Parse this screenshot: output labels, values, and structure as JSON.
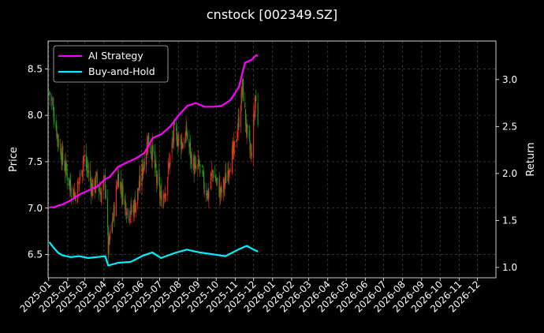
{
  "chart_data": {
    "type": "line",
    "title": "cnstock [002349.SZ]",
    "xlabel": "",
    "ylabel_left": "Price",
    "ylabel_right": "Return",
    "x_ticks": [
      "2025-01",
      "2025-02",
      "2025-03",
      "2025-04",
      "2025-05",
      "2025-06",
      "2025-07",
      "2025-08",
      "2025-09",
      "2025-10",
      "2025-11",
      "2025-12",
      "2026-01",
      "2026-02",
      "2026-03",
      "2026-04",
      "2026-05",
      "2026-06",
      "2026-07",
      "2026-08",
      "2026-09",
      "2026-10",
      "2026-11",
      "2026-12"
    ],
    "y_left_ticks": [
      6.5,
      7.0,
      7.5,
      8.0,
      8.5
    ],
    "y_right_ticks": [
      1.0,
      1.5,
      2.0,
      2.5,
      3.0
    ],
    "y_left_range": [
      6.25,
      8.8
    ],
    "y_right_range": [
      0.89,
      3.41
    ],
    "grid": true,
    "legend_position": "upper-left",
    "colors": {
      "up": "#ff2a1a",
      "down": "#1fa01f",
      "ai": "#ff00ff",
      "bh": "#00f0ff",
      "grid": "#555555"
    },
    "price_keypoints": [
      [
        "2025-01-02",
        8.25
      ],
      [
        "2025-01-09",
        8.05
      ],
      [
        "2025-01-16",
        7.75
      ],
      [
        "2025-01-23",
        7.55
      ],
      [
        "2025-02-05",
        7.25
      ],
      [
        "2025-02-13",
        7.15
      ],
      [
        "2025-02-20",
        7.3
      ],
      [
        "2025-02-27",
        7.55
      ],
      [
        "2025-03-06",
        7.4
      ],
      [
        "2025-03-13",
        7.2
      ],
      [
        "2025-03-20",
        7.3
      ],
      [
        "2025-03-27",
        7.15
      ],
      [
        "2025-04-03",
        7.3
      ],
      [
        "2025-04-08",
        6.55
      ],
      [
        "2025-04-17",
        6.95
      ],
      [
        "2025-04-24",
        7.35
      ],
      [
        "2025-05-08",
        7.0
      ],
      [
        "2025-05-15",
        6.95
      ],
      [
        "2025-05-22",
        7.05
      ],
      [
        "2025-05-29",
        7.25
      ],
      [
        "2025-06-05",
        7.5
      ],
      [
        "2025-06-12",
        7.75
      ],
      [
        "2025-06-19",
        7.6
      ],
      [
        "2025-06-26",
        7.3
      ],
      [
        "2025-07-03",
        7.1
      ],
      [
        "2025-07-10",
        7.2
      ],
      [
        "2025-07-17",
        7.5
      ],
      [
        "2025-07-24",
        7.8
      ],
      [
        "2025-07-31",
        7.75
      ],
      [
        "2025-08-07",
        7.7
      ],
      [
        "2025-08-14",
        7.8
      ],
      [
        "2025-08-21",
        7.55
      ],
      [
        "2025-08-28",
        7.4
      ],
      [
        "2025-09-04",
        7.45
      ],
      [
        "2025-09-11",
        7.25
      ],
      [
        "2025-09-18",
        7.15
      ],
      [
        "2025-09-25",
        7.4
      ],
      [
        "2025-10-09",
        7.15
      ],
      [
        "2025-10-16",
        7.3
      ],
      [
        "2025-10-23",
        7.5
      ],
      [
        "2025-10-30",
        7.6
      ],
      [
        "2025-11-06",
        7.9
      ],
      [
        "2025-11-13",
        8.3
      ],
      [
        "2025-11-20",
        7.8
      ],
      [
        "2025-11-27",
        7.55
      ],
      [
        "2025-12-04",
        8.2
      ],
      [
        "2025-12-08",
        7.95
      ]
    ],
    "series": [
      {
        "name": "AI Strategy",
        "color": "#ff00ff",
        "points": [
          [
            "2025-01-02",
            1.64
          ],
          [
            "2025-01-10",
            1.64
          ],
          [
            "2025-01-17",
            1.66
          ],
          [
            "2025-01-24",
            1.67
          ],
          [
            "2025-02-07",
            1.72
          ],
          [
            "2025-02-21",
            1.78
          ],
          [
            "2025-03-07",
            1.82
          ],
          [
            "2025-03-21",
            1.86
          ],
          [
            "2025-04-03",
            1.94
          ],
          [
            "2025-04-10",
            1.96
          ],
          [
            "2025-04-24",
            2.07
          ],
          [
            "2025-05-09",
            2.12
          ],
          [
            "2025-05-23",
            2.16
          ],
          [
            "2025-06-06",
            2.22
          ],
          [
            "2025-06-20",
            2.38
          ],
          [
            "2025-07-04",
            2.42
          ],
          [
            "2025-07-18",
            2.5
          ],
          [
            "2025-08-01",
            2.62
          ],
          [
            "2025-08-15",
            2.72
          ],
          [
            "2025-08-29",
            2.75
          ],
          [
            "2025-09-12",
            2.71
          ],
          [
            "2025-09-26",
            2.71
          ],
          [
            "2025-10-10",
            2.72
          ],
          [
            "2025-10-24",
            2.78
          ],
          [
            "2025-11-07",
            2.92
          ],
          [
            "2025-11-17",
            3.18
          ],
          [
            "2025-11-28",
            3.21
          ],
          [
            "2025-12-05",
            3.26
          ],
          [
            "2025-12-08",
            3.25
          ]
        ]
      },
      {
        "name": "Buy-and-Hold",
        "color": "#00f0ff",
        "points": [
          [
            "2025-01-02",
            1.27
          ],
          [
            "2025-01-09",
            1.21
          ],
          [
            "2025-01-16",
            1.16
          ],
          [
            "2025-01-23",
            1.13
          ],
          [
            "2025-02-06",
            1.11
          ],
          [
            "2025-02-20",
            1.12
          ],
          [
            "2025-03-06",
            1.1
          ],
          [
            "2025-03-20",
            1.11
          ],
          [
            "2025-04-03",
            1.12
          ],
          [
            "2025-04-08",
            1.02
          ],
          [
            "2025-04-24",
            1.05
          ],
          [
            "2025-05-15",
            1.06
          ],
          [
            "2025-06-05",
            1.13
          ],
          [
            "2025-06-19",
            1.16
          ],
          [
            "2025-07-03",
            1.1
          ],
          [
            "2025-07-24",
            1.15
          ],
          [
            "2025-08-14",
            1.19
          ],
          [
            "2025-09-04",
            1.16
          ],
          [
            "2025-09-25",
            1.14
          ],
          [
            "2025-10-16",
            1.12
          ],
          [
            "2025-11-06",
            1.19
          ],
          [
            "2025-11-20",
            1.23
          ],
          [
            "2025-12-01",
            1.19
          ],
          [
            "2025-12-08",
            1.17
          ]
        ]
      }
    ]
  }
}
